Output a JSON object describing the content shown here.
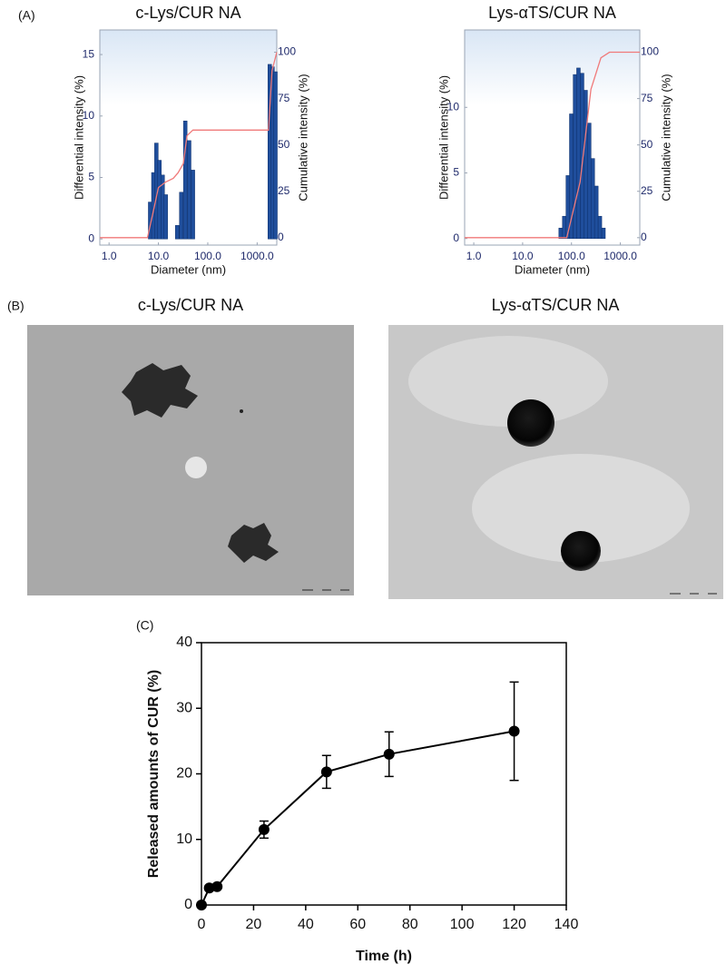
{
  "figure": {
    "panel_labels": [
      "(A)",
      "(B)",
      "(C)"
    ],
    "images": [
      {
        "title": "c-Lys/CUR NA"
      },
      {
        "title": "Lys-αTS/CUR NA"
      }
    ]
  },
  "chart_data": [
    {
      "type": "bar",
      "title": "c-Lys/CUR NA",
      "xlabel": "Diameter (nm)",
      "ylabel": "Differential intensity (%)",
      "y2label": "Cumulative intensity (%)",
      "xscale": "log",
      "xlim": [
        0.65,
        2500
      ],
      "xticks": [
        {
          "value": 1,
          "label": "1.0"
        },
        {
          "value": 10,
          "label": "10.0"
        },
        {
          "value": 100,
          "label": "100.0"
        },
        {
          "value": 1000,
          "label": "1000.0"
        }
      ],
      "ylim": [
        -0.5,
        17
      ],
      "yticks": [
        0,
        5,
        10,
        15
      ],
      "y2lim": [
        -4,
        112
      ],
      "y2ticks": [
        0,
        25,
        50,
        75,
        100
      ],
      "series": [
        {
          "type": "bar",
          "color": "#1f4e9c",
          "x": [
            6.8,
            7.9,
            9.1,
            10.5,
            12.2,
            14.1,
            24,
            29,
            35,
            42,
            50,
            1800,
            2050,
            2350
          ],
          "values": [
            3.0,
            5.4,
            7.8,
            6.4,
            5.2,
            3.6,
            1.1,
            3.8,
            9.6,
            8.0,
            5.6,
            14.2,
            14.0,
            13.6
          ]
        },
        {
          "type": "line",
          "axis": "y2",
          "color": "#f07a7a",
          "x": [
            0.65,
            6,
            8,
            10,
            14,
            20,
            25,
            32,
            38,
            50,
            1700,
            2000,
            2500
          ],
          "values": [
            0,
            0,
            15,
            27,
            30,
            32,
            35,
            40,
            55,
            58,
            58,
            90,
            100
          ]
        }
      ]
    },
    {
      "type": "bar",
      "title": "Lys-αTS/CUR NA",
      "xlabel": "Diameter (nm)",
      "ylabel": "Differential intensity (%)",
      "y2label": "Cumulative intensity (%)",
      "xscale": "log",
      "xlim": [
        0.65,
        2500
      ],
      "xticks": [
        {
          "value": 1,
          "label": "1.0"
        },
        {
          "value": 10,
          "label": "10.0"
        },
        {
          "value": 100,
          "label": "100.0"
        },
        {
          "value": 1000,
          "label": "1000.0"
        }
      ],
      "ylim": [
        -0.5,
        15.9
      ],
      "yticks": [
        0,
        5,
        10
      ],
      "y2lim": [
        -4,
        112
      ],
      "y2ticks": [
        0,
        25,
        50,
        75,
        100
      ],
      "series": [
        {
          "type": "bar",
          "color": "#1f4e9c",
          "x": [
            60,
            71,
            84,
            99,
            118,
            139,
            165,
            195,
            231,
            273,
            323,
            382,
            452
          ],
          "values": [
            0.8,
            1.7,
            4.8,
            9.5,
            12.5,
            13.0,
            12.6,
            11.3,
            8.8,
            6.1,
            4.0,
            1.7,
            0.8
          ]
        },
        {
          "type": "line",
          "axis": "y2",
          "color": "#f07a7a",
          "x": [
            0.65,
            80,
            150,
            250,
            400,
            600,
            2500
          ],
          "values": [
            0,
            0,
            30,
            80,
            97,
            100,
            100
          ]
        }
      ]
    },
    {
      "type": "line",
      "xlabel": "Time (h)",
      "ylabel": "Released amounts of CUR (%)",
      "xlim": [
        0,
        140
      ],
      "xticks": [
        0,
        20,
        40,
        60,
        80,
        100,
        120,
        140
      ],
      "ylim": [
        0,
        40
      ],
      "yticks": [
        0,
        10,
        20,
        30,
        40
      ],
      "color": "#000000",
      "x": [
        0,
        3,
        6,
        24,
        48,
        72,
        120
      ],
      "values": [
        0,
        2.6,
        2.8,
        11.5,
        20.3,
        23.0,
        26.5
      ],
      "errors": [
        0,
        0.3,
        0.3,
        1.3,
        2.5,
        3.4,
        7.5
      ]
    }
  ]
}
